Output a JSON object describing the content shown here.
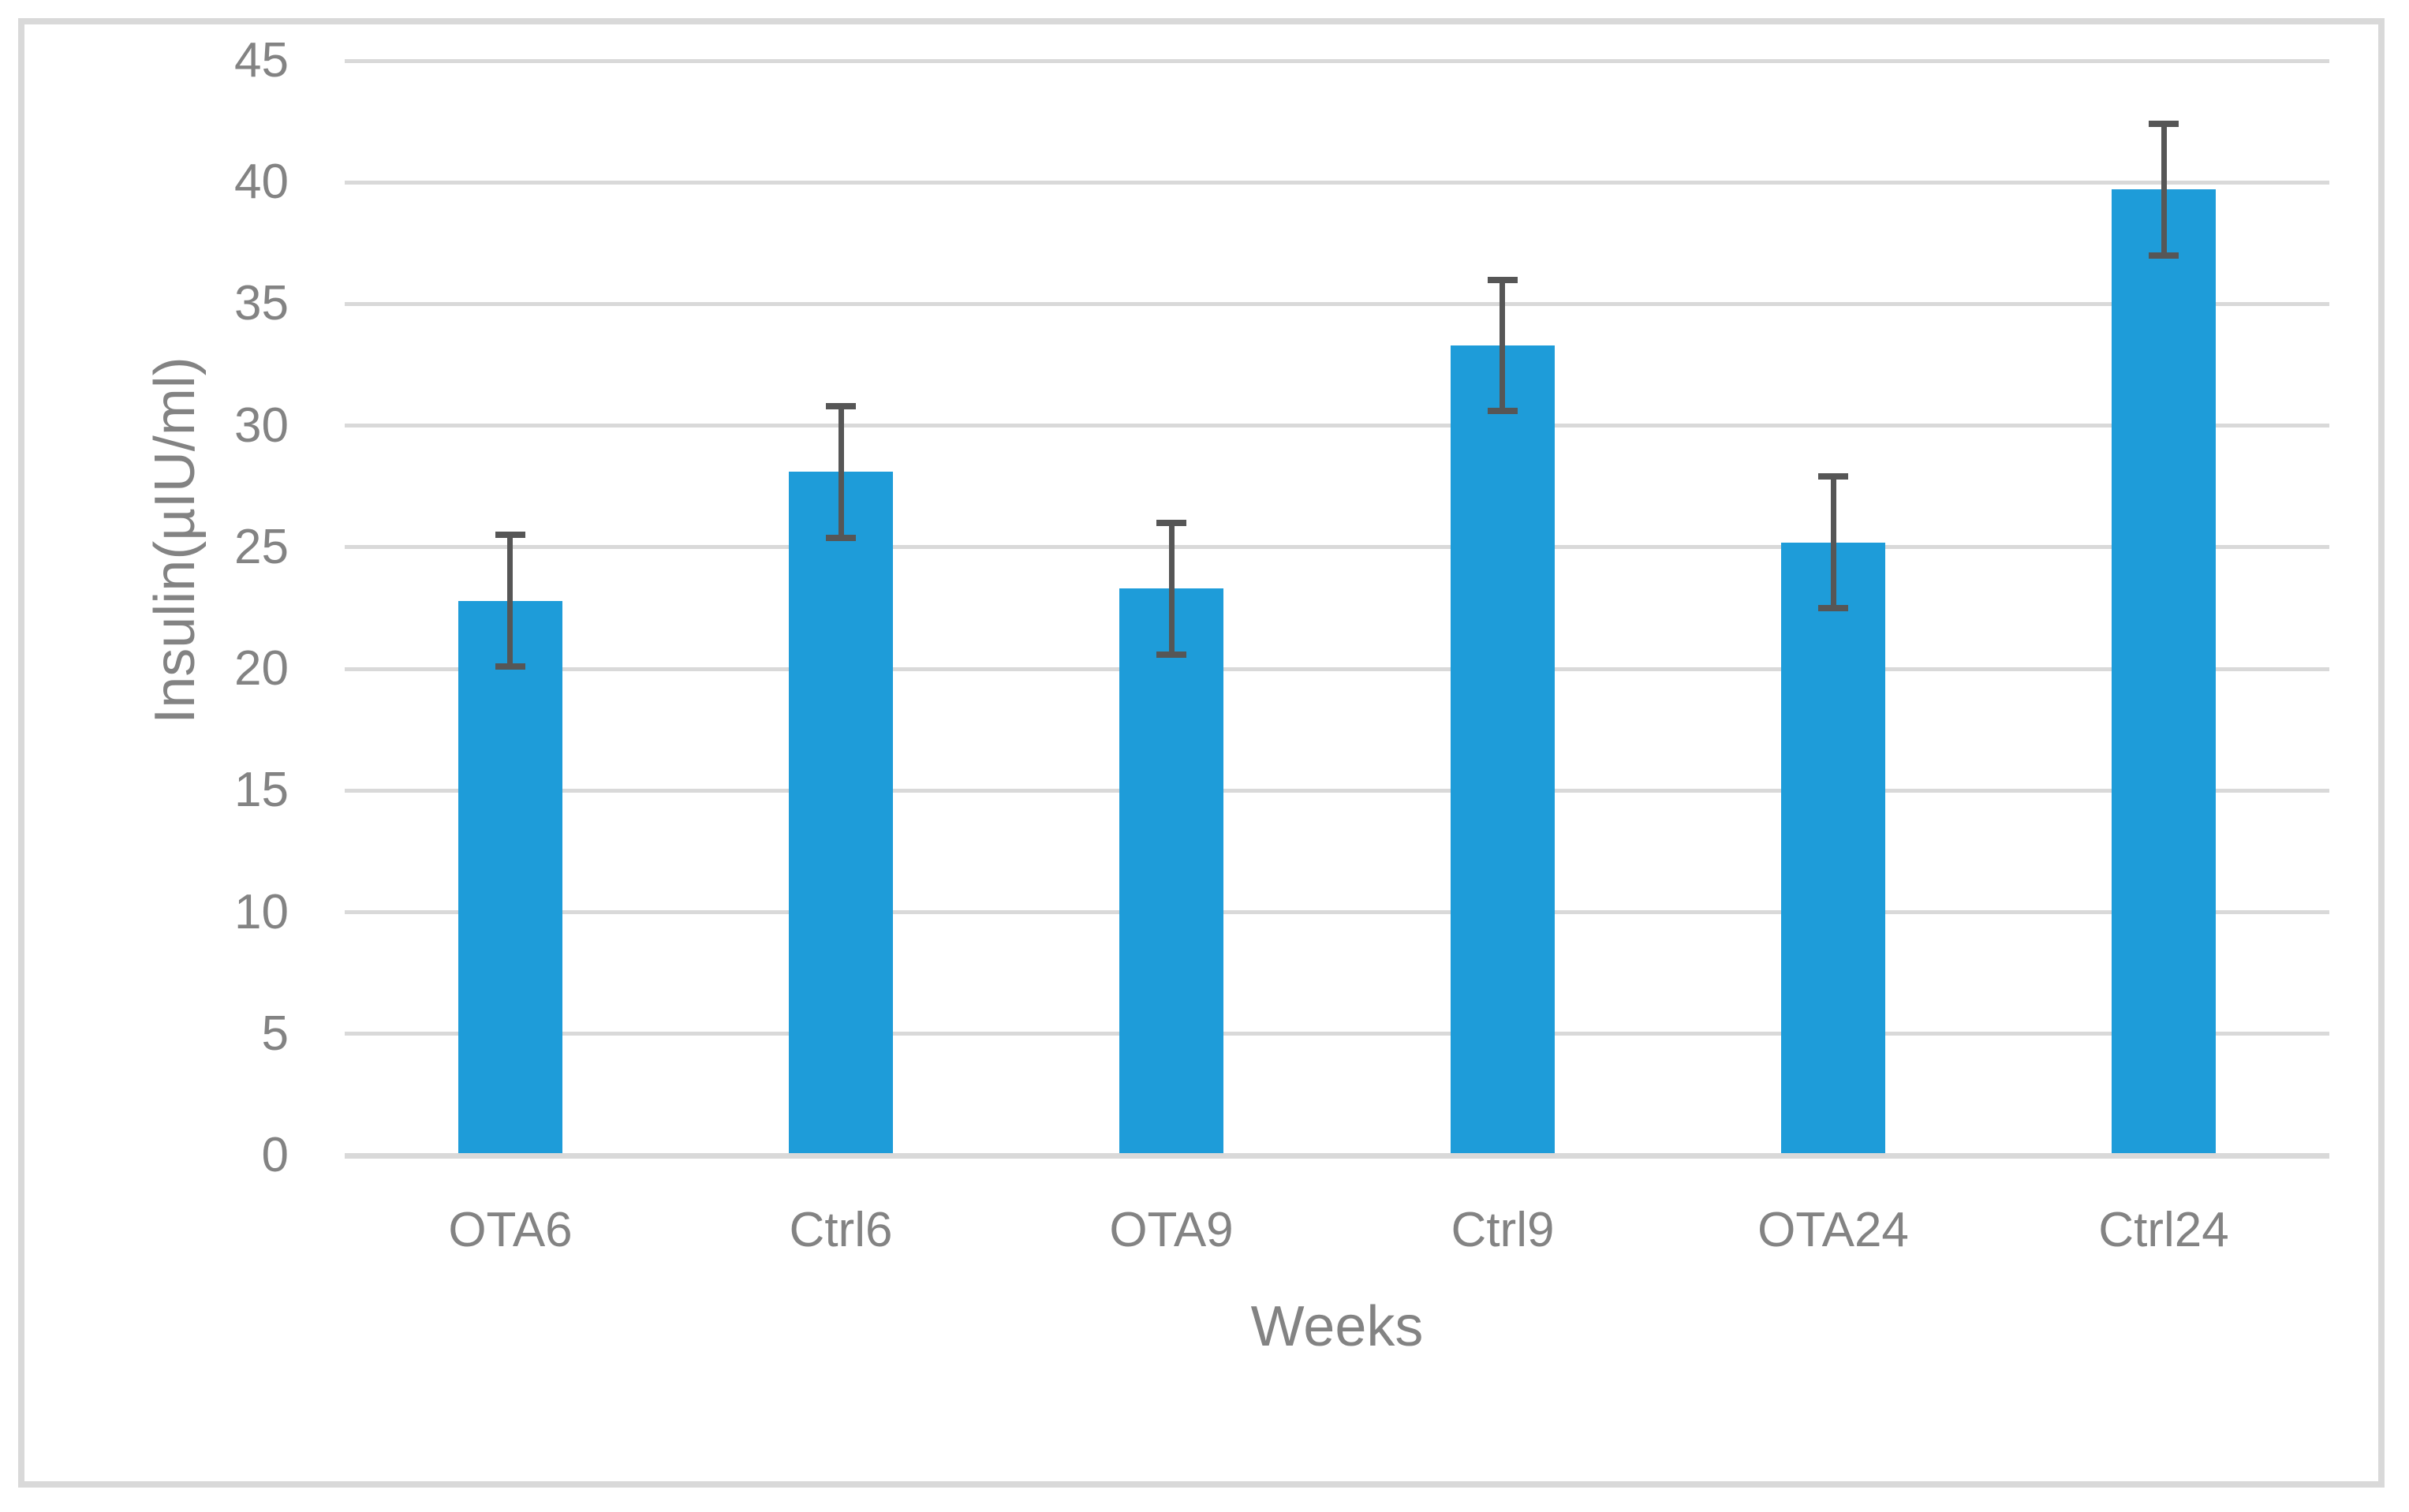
{
  "figure": {
    "background_color": "#ffffff",
    "border_color": "#d9d9d9"
  },
  "chart_data": {
    "type": "bar",
    "title": "",
    "categories": [
      "OTA6",
      "Ctrl6",
      "OTA9",
      "Ctrl9",
      "OTA24",
      "Ctrl24"
    ],
    "values": [
      22.8,
      28.1,
      23.3,
      33.3,
      25.2,
      39.7
    ],
    "error_bars": [
      2.7,
      2.7,
      2.7,
      2.7,
      2.7,
      2.7
    ],
    "xlabel": "Weeks",
    "ylabel": "Insulin(µIU/ml)",
    "ylim": [
      0,
      45
    ],
    "yticks": [
      0,
      5,
      10,
      15,
      20,
      25,
      30,
      35,
      40,
      45
    ],
    "grid": true,
    "legend": "none",
    "bar_color": "#1e9cd9",
    "error_bar_color": "#565656",
    "grid_color": "#d9d9d9",
    "axis_line_color": "#d9d9d9",
    "text_color": "#838383"
  }
}
